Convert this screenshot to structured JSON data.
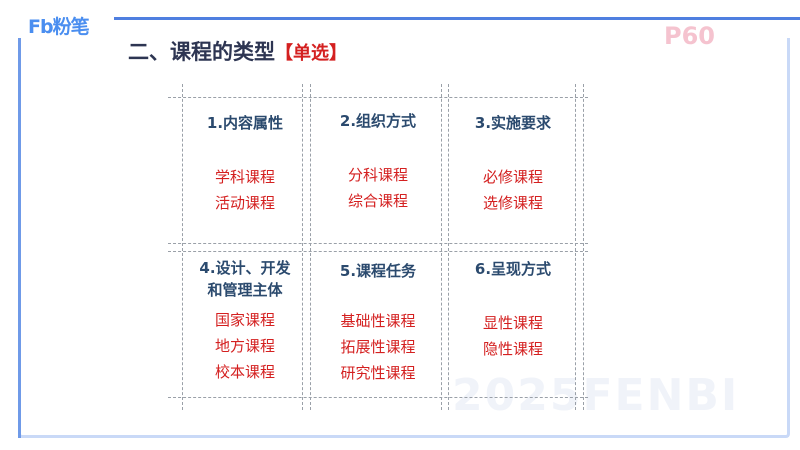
{
  "brand": {
    "logo": "Fb粉笔"
  },
  "page_number": "P60",
  "title": {
    "main": "二、课程的类型",
    "tag": "【单选】"
  },
  "watermark": "2025FENBI",
  "categories": [
    {
      "head": [
        "1.内容属性"
      ],
      "items": [
        "学科课程",
        "活动课程"
      ]
    },
    {
      "head": [
        "2.组织方式"
      ],
      "items": [
        "分科课程",
        "综合课程"
      ]
    },
    {
      "head": [
        "3.实施要求"
      ],
      "items": [
        "必修课程",
        "选修课程"
      ]
    },
    {
      "head": [
        "4.设计、开发",
        "和管理主体"
      ],
      "items": [
        "国家课程",
        "地方课程",
        "校本课程"
      ]
    },
    {
      "head": [
        "5.课程任务"
      ],
      "items": [
        "基础性课程",
        "拓展性课程",
        "研究性课程"
      ]
    },
    {
      "head": [
        "6.呈现方式"
      ],
      "items": [
        "显性课程",
        "隐性课程"
      ]
    }
  ]
}
